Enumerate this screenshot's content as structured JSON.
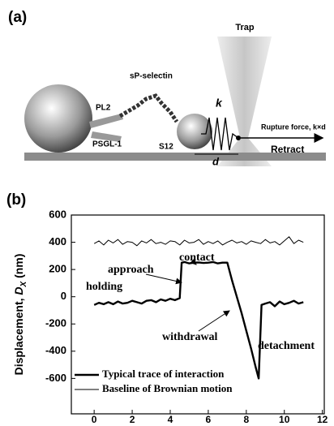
{
  "panel_a": {
    "label": "(a)",
    "trap": "Trap",
    "pl2": "PL2",
    "selectin": "sP-selectin",
    "s12": "S12",
    "psgl": "PSGL-1",
    "k": "k",
    "d": "d",
    "rupture": "Rupture force, k×d",
    "retract": "Retract"
  },
  "chart_data": {
    "type": "line",
    "panel_label": "(b)",
    "ylabel": [
      "Displacement, ",
      "D",
      "X",
      " (nm)"
    ],
    "xlim": [
      -1.2,
      12.1
    ],
    "xticks": [
      0,
      2,
      4,
      6,
      8,
      10,
      12
    ],
    "ylim": [
      -860,
      600
    ],
    "yticks": [
      -600,
      -400,
      -200,
      0,
      200,
      400,
      600
    ],
    "legend": "lower left",
    "series": [
      {
        "name": "Typical trace of interaction",
        "color": "#000000",
        "line_width": 2.4,
        "x": [
          0,
          0.25,
          0.5,
          0.75,
          1,
          1.25,
          1.5,
          1.75,
          2,
          2.25,
          2.5,
          2.75,
          3,
          3.25,
          3.5,
          3.75,
          4,
          4.25,
          4.5,
          4.6,
          4.75,
          5,
          5.25,
          5.5,
          5.75,
          6,
          6.25,
          6.5,
          6.75,
          7,
          7.25,
          7.5,
          7.75,
          8,
          8.25,
          8.5,
          8.65,
          8.8,
          9,
          9.25,
          9.5,
          9.75,
          10,
          10.25,
          10.5,
          10.75,
          11
        ],
        "values": [
          -60,
          -45,
          -55,
          -40,
          -55,
          -35,
          -50,
          -45,
          -30,
          -40,
          -50,
          -30,
          -25,
          -40,
          -20,
          -30,
          -15,
          -25,
          -10,
          250,
          255,
          245,
          250,
          252,
          248,
          250,
          255,
          245,
          250,
          250,
          120,
          0,
          -120,
          -250,
          -380,
          -520,
          -600,
          -60,
          -50,
          -40,
          -70,
          -35,
          -55,
          -45,
          -30,
          -50,
          -40
        ]
      },
      {
        "name": "Baseline of Brownian motion",
        "color": "#000000",
        "line_width": 1,
        "x": [
          0,
          0.25,
          0.5,
          0.75,
          1,
          1.25,
          1.5,
          1.75,
          2,
          2.25,
          2.5,
          2.75,
          3,
          3.25,
          3.5,
          3.75,
          4,
          4.25,
          4.5,
          4.75,
          5,
          5.25,
          5.5,
          5.75,
          6,
          6.25,
          6.5,
          6.75,
          7,
          7.25,
          7.5,
          7.75,
          8,
          8.25,
          8.5,
          8.75,
          9,
          9.25,
          9.5,
          9.75,
          10,
          10.25,
          10.5,
          10.75,
          11
        ],
        "values": [
          390,
          410,
          380,
          415,
          395,
          420,
          385,
          405,
          400,
          375,
          410,
          395,
          420,
          390,
          400,
          385,
          410,
          405,
          380,
          415,
          395,
          400,
          420,
          385,
          405,
          390,
          410,
          380,
          400,
          415,
          395,
          405,
          385,
          410,
          400,
          390,
          420,
          395,
          405,
          380,
          410,
          440,
          390,
          415,
          400
        ]
      }
    ],
    "annotations": [
      "holding",
      "approach",
      "contact",
      "withdrawal",
      "detachment"
    ]
  }
}
